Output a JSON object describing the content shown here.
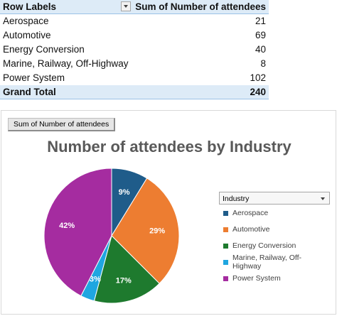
{
  "pivot": {
    "header": {
      "row_labels": "Row Labels",
      "value_label": "Sum of Number of attendees"
    },
    "rows": [
      {
        "label": "Aerospace",
        "value": "21"
      },
      {
        "label": "Automotive",
        "value": "69"
      },
      {
        "label": "Energy Conversion",
        "value": "40"
      },
      {
        "label": "Marine, Railway, Off-Highway",
        "value": "8"
      },
      {
        "label": "Power System",
        "value": "102"
      }
    ],
    "total": {
      "label": "Grand Total",
      "value": "240"
    }
  },
  "chart_field_button": "Sum of Number of attendees",
  "legend": {
    "title": "Industry"
  },
  "chart_data": {
    "type": "pie",
    "title": "Number of attendees by Industry",
    "categories": [
      "Aerospace",
      "Automotive",
      "Energy Conversion",
      "Marine, Railway, Off-Highway",
      "Power System"
    ],
    "values": [
      21,
      69,
      40,
      8,
      102
    ],
    "data_labels": [
      "9%",
      "29%",
      "17%",
      "3%",
      "42%"
    ],
    "colors": [
      "#1F5C8A",
      "#ED7D31",
      "#1E7A2E",
      "#1FA6E0",
      "#A52CA0"
    ],
    "legend_position": "right"
  }
}
